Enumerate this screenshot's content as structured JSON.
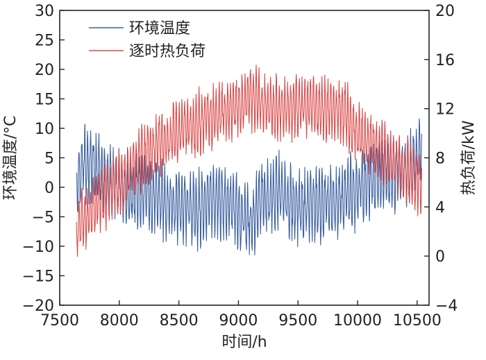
{
  "chart_data": {
    "type": "line",
    "title": "",
    "xlabel": "时间/h",
    "ylabel_left": "环境温度/°C",
    "ylabel_right": "热负荷/kW",
    "xlim": [
      7500,
      10600
    ],
    "ylim_left": [
      -20,
      30
    ],
    "ylim_right": [
      -4,
      20
    ],
    "xticks": [
      7500,
      8000,
      8500,
      9000,
      9500,
      10000,
      10500
    ],
    "yticks_left": [
      -20,
      -15,
      -10,
      -5,
      0,
      5,
      10,
      15,
      20,
      25,
      30
    ],
    "yticks_right": [
      -4,
      0,
      4,
      8,
      12,
      16,
      20
    ],
    "legend_position": "top-left",
    "series": [
      {
        "name": "环境温度",
        "axis": "left",
        "color": "#3a5f9e",
        "x_range": [
          7640,
          10540
        ],
        "daily_amplitude": 5,
        "envelope_x": [
          7640,
          7700,
          7760,
          7850,
          8000,
          8200,
          8500,
          8650,
          8800,
          9000,
          9100,
          9200,
          9350,
          9450,
          9600,
          9800,
          10000,
          10200,
          10400,
          10540
        ],
        "envelope_y": [
          0,
          4,
          4,
          2,
          0,
          -1,
          -3,
          -4,
          -2,
          -4,
          -6,
          -2,
          -1,
          -3,
          -3,
          -3,
          0,
          2,
          3,
          6
        ]
      },
      {
        "name": "逐时热负荷",
        "axis": "right",
        "color": "#d94a4a",
        "x_range": [
          7640,
          10540
        ],
        "daily_amplitude": 2,
        "envelope_x": [
          7640,
          7700,
          7800,
          8000,
          8200,
          8400,
          8600,
          8800,
          9000,
          9100,
          9200,
          9300,
          9400,
          9600,
          9800,
          9900,
          10000,
          10200,
          10400,
          10540
        ],
        "envelope_y": [
          2,
          3,
          4,
          6,
          8,
          9.5,
          10.5,
          11.5,
          12.2,
          13,
          12.5,
          12,
          12,
          12.2,
          12,
          11.5,
          10,
          8.5,
          7,
          5.5
        ]
      }
    ]
  }
}
